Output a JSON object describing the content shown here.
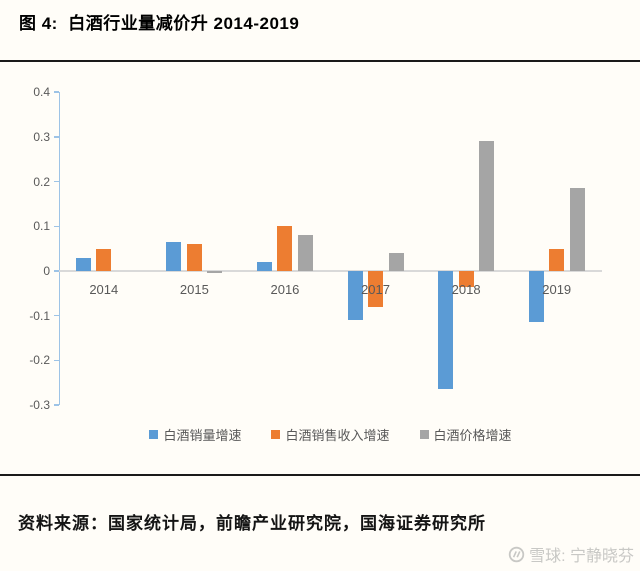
{
  "figure": {
    "title": "图 4:  白酒行业量减价升 2014-2019",
    "source": "资料来源：国家统计局，前瞻产业研究院，国海证券研究所",
    "watermark_text": "雪球: 宁静晓芬"
  },
  "chart_data": {
    "type": "bar",
    "title": "白酒行业量减价升 2014-2019",
    "categories": [
      "2014",
      "2015",
      "2016",
      "2017",
      "2018",
      "2019"
    ],
    "series": [
      {
        "name": "白酒销量增速",
        "color": "#5B9BD5",
        "values": [
          0.03,
          0.065,
          0.02,
          -0.11,
          -0.265,
          -0.115
        ]
      },
      {
        "name": "白酒销售收入增速",
        "color": "#ED7D31",
        "values": [
          0.05,
          0.06,
          0.1,
          -0.08,
          -0.035,
          0.05
        ]
      },
      {
        "name": "白酒价格增速",
        "color": "#A5A5A5",
        "values": [
          0.0,
          -0.005,
          0.08,
          0.04,
          0.29,
          0.185
        ]
      }
    ],
    "ylim": [
      -0.3,
      0.4
    ],
    "yticks": [
      0.4,
      0.3,
      0.2,
      0.1,
      0,
      -0.1,
      -0.2,
      -0.3
    ],
    "xlabel": "",
    "ylabel": "",
    "grid": false,
    "legend_position": "bottom",
    "axis_color": "#9DC3E6",
    "zero_line_color": "#D9D9D9",
    "tick_label_color": "#595959"
  }
}
